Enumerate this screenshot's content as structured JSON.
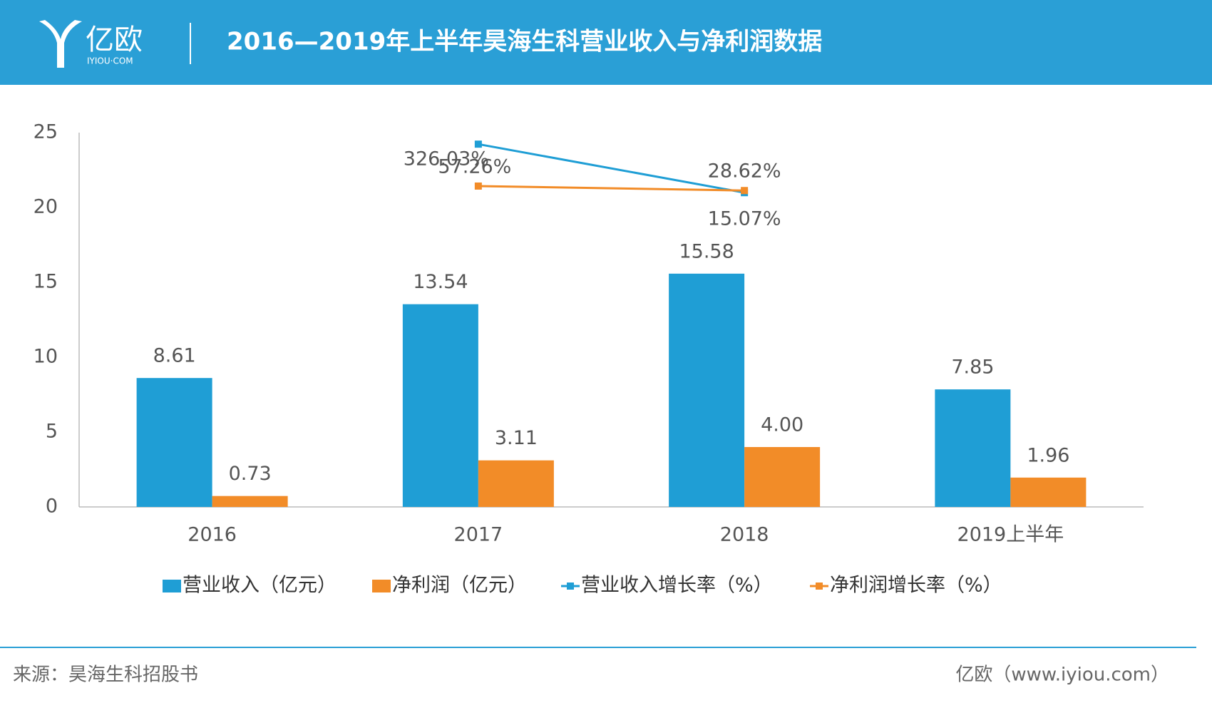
{
  "header": {
    "logo": "亿欧",
    "logo_sub": "IYIOU·COM"
  },
  "chart_data": {
    "type": "bar",
    "title": "2016—2019年上半年昊海生科营业收入与净利润数据",
    "categories": [
      "2016",
      "2017",
      "2018",
      "2019上半年"
    ],
    "series": [
      {
        "name": "营业收入（亿元）",
        "color": "#1f9ed5",
        "values": [
          8.61,
          13.54,
          15.58,
          7.85
        ]
      },
      {
        "name": "净利润（亿元）",
        "color": "#f28c28",
        "values": [
          0.73,
          3.11,
          4.0,
          1.96
        ],
        "value_labels": [
          "0.73",
          "3.11",
          "4.00",
          "1.96"
        ]
      },
      {
        "name": "营业收入增长率（%）",
        "type": "line",
        "axis": "y2",
        "color": "#1f9ed5",
        "values": [
          null,
          326.03,
          15.07,
          null
        ],
        "value_labels": [
          null,
          "326.03%",
          "15.07%",
          null
        ]
      },
      {
        "name": "净利润增长率（%）",
        "type": "line",
        "axis": "y2",
        "color": "#f28c28",
        "values": [
          null,
          57.26,
          28.62,
          null
        ],
        "value_labels": [
          null,
          "57.26%",
          "28.62%",
          null
        ]
      }
    ],
    "ylim": [
      0,
      25
    ],
    "yticks": [
      0,
      5,
      10,
      15,
      20,
      25
    ],
    "y2lim": [
      -2000,
      400
    ]
  },
  "footer": {
    "source": "来源：昊海生科招股书",
    "site": "亿欧（www.iyiou.com）"
  }
}
